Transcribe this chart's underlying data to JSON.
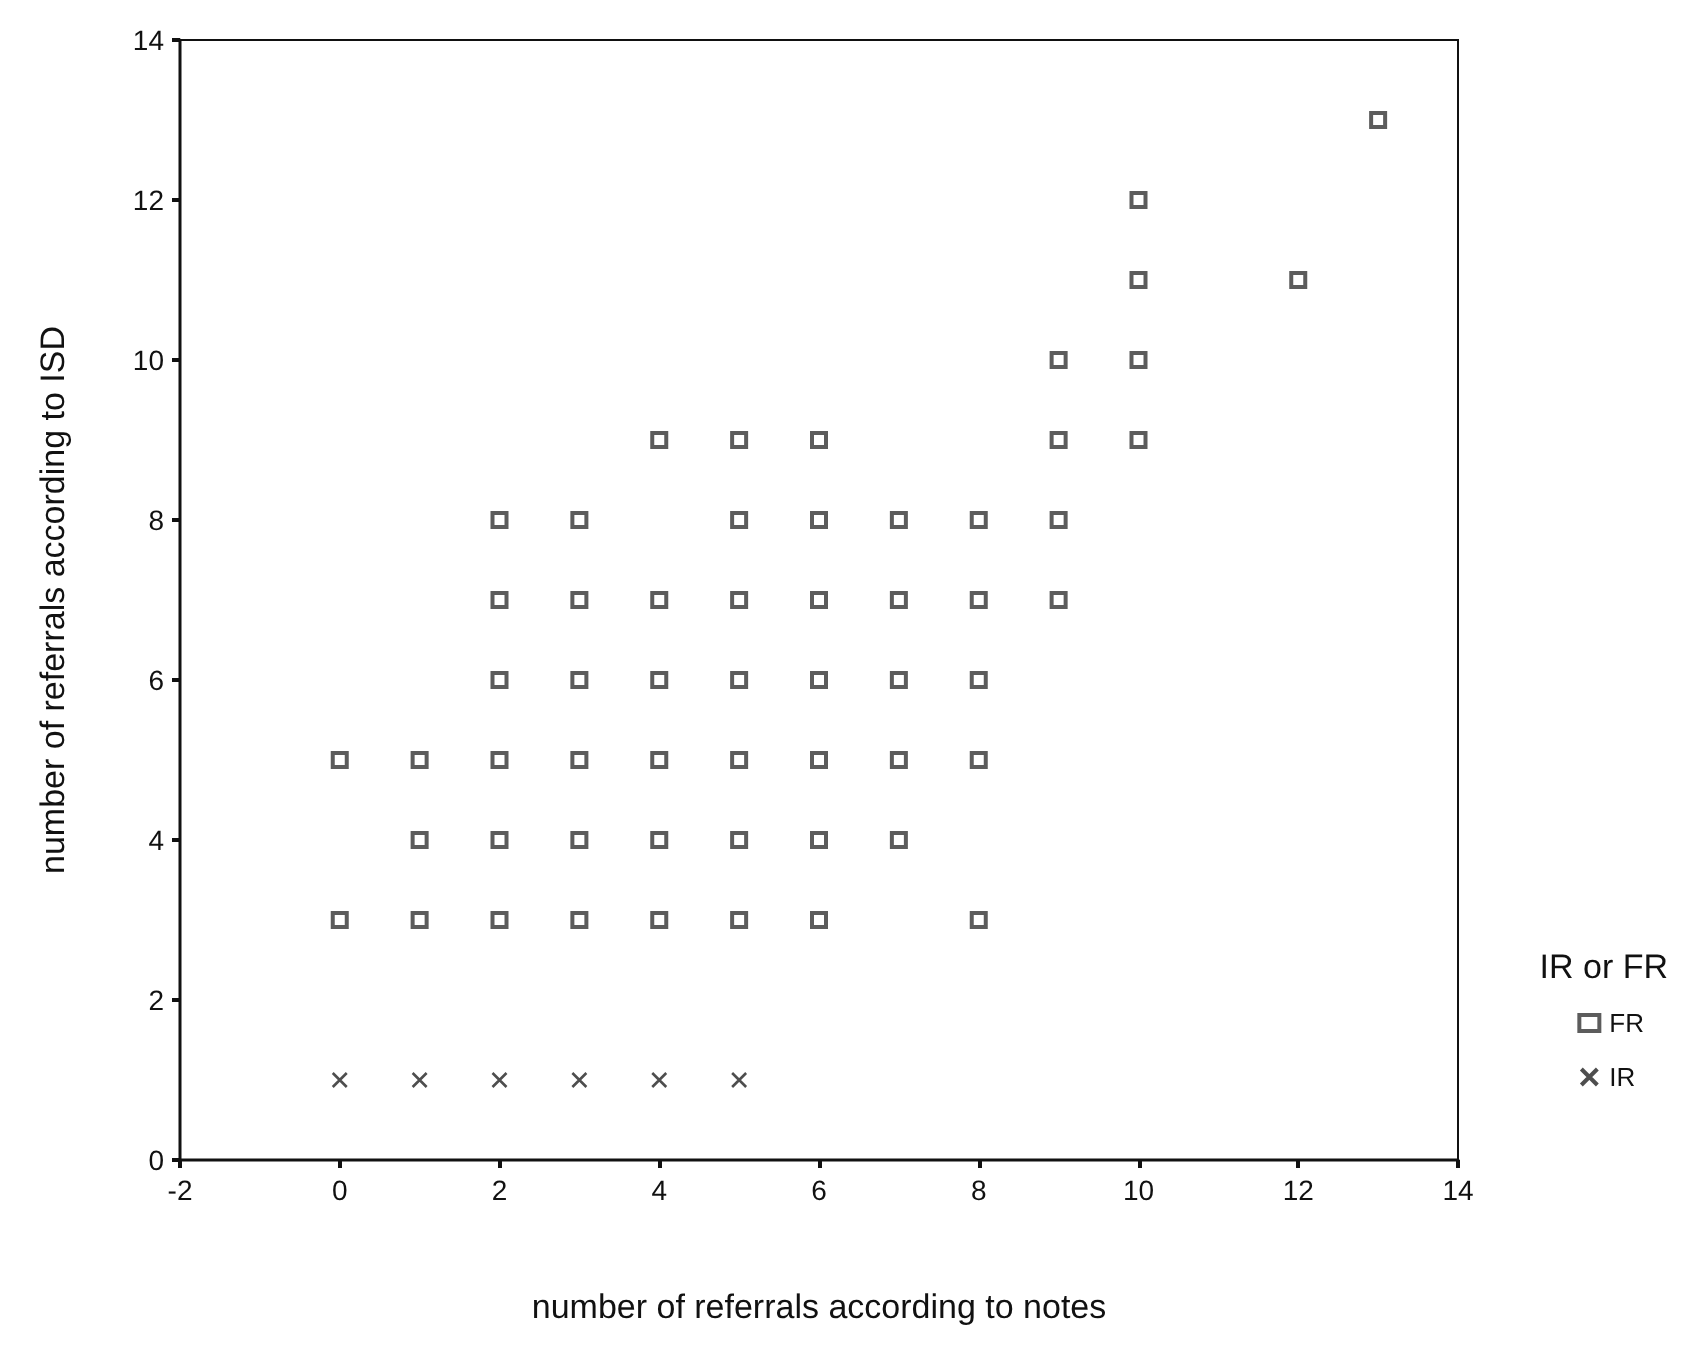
{
  "chart_data": {
    "type": "scatter",
    "xlabel": "number of referrals according to notes",
    "ylabel": "number of referrals according to ISD",
    "legend_title": "IR or FR",
    "legend": "right",
    "grid": false,
    "xlim": [
      -2,
      14
    ],
    "xticks": [
      -2,
      0,
      2,
      4,
      6,
      8,
      10,
      12,
      14
    ],
    "ylim": [
      0,
      14
    ],
    "yticks": [
      0,
      2,
      4,
      6,
      8,
      10,
      12,
      14
    ],
    "series": [
      {
        "name": "FR",
        "color": "#333333",
        "marker": "square",
        "x": [
          0,
          0,
          1,
          1,
          1,
          2,
          2,
          2,
          2,
          2,
          2,
          3,
          3,
          3,
          3,
          3,
          3,
          4,
          4,
          4,
          4,
          4,
          4,
          5,
          5,
          5,
          5,
          5,
          5,
          5,
          6,
          6,
          6,
          6,
          6,
          6,
          6,
          7,
          7,
          7,
          7,
          7,
          8,
          8,
          8,
          8,
          8,
          9,
          9,
          9,
          9,
          10,
          10,
          10,
          10,
          12,
          13
        ],
        "values": [
          5,
          3,
          5,
          4,
          3,
          8,
          7,
          6,
          5,
          4,
          3,
          8,
          7,
          6,
          5,
          4,
          3,
          9,
          7,
          6,
          5,
          4,
          3,
          9,
          8,
          7,
          6,
          5,
          4,
          3,
          9,
          8,
          7,
          6,
          5,
          4,
          3,
          8,
          7,
          6,
          5,
          4,
          8,
          7,
          6,
          5,
          3,
          10,
          9,
          8,
          7,
          12,
          11,
          10,
          9,
          11,
          13
        ]
      },
      {
        "name": "IR",
        "color": "#222222",
        "marker": "cross",
        "x": [
          0,
          1,
          2,
          3,
          4,
          5
        ],
        "values": [
          1,
          1,
          1,
          1,
          1,
          1
        ]
      }
    ]
  }
}
